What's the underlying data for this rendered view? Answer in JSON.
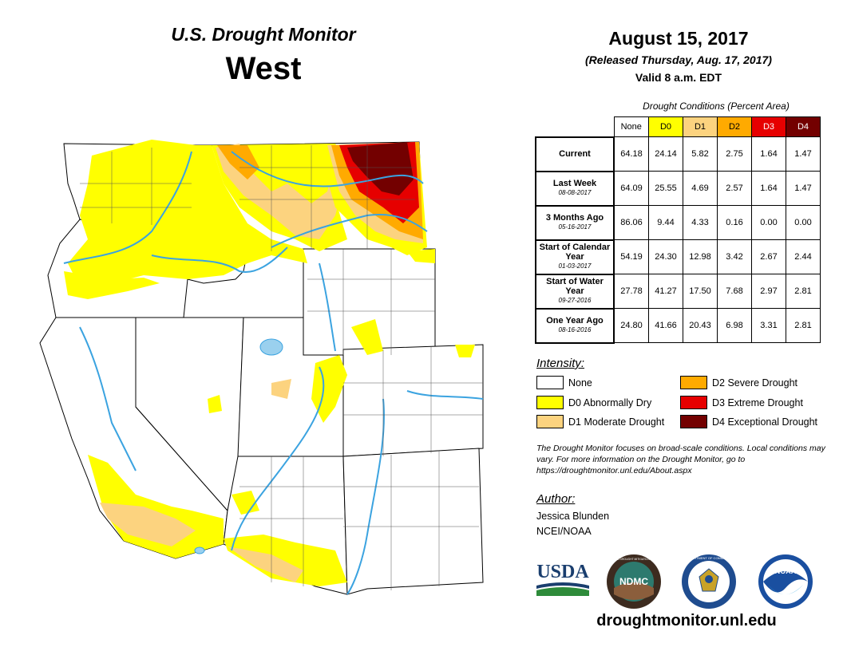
{
  "header": {
    "subtitle": "U.S. Drought Monitor",
    "region": "West",
    "date": "August 15, 2017",
    "released": "(Released Thursday, Aug. 17, 2017)",
    "valid": "Valid 8 a.m. EDT"
  },
  "conditions": {
    "caption": "Drought Conditions (Percent Area)",
    "columns": [
      "None",
      "D0",
      "D1",
      "D2",
      "D3",
      "D4"
    ],
    "column_colors": [
      "#ffffff",
      "#ffff00",
      "#fcd37f",
      "#ffaa00",
      "#e60000",
      "#730000"
    ],
    "column_text_colors": [
      "#000000",
      "#000000",
      "#000000",
      "#000000",
      "#ffffff",
      "#ffffff"
    ],
    "rows": [
      {
        "label": "Current",
        "date": "",
        "values": [
          "64.18",
          "24.14",
          "5.82",
          "2.75",
          "1.64",
          "1.47"
        ]
      },
      {
        "label": "Last Week",
        "date": "08-08-2017",
        "values": [
          "64.09",
          "25.55",
          "4.69",
          "2.57",
          "1.64",
          "1.47"
        ]
      },
      {
        "label": "3 Months Ago",
        "date": "05-16-2017",
        "values": [
          "86.06",
          "9.44",
          "4.33",
          "0.16",
          "0.00",
          "0.00"
        ]
      },
      {
        "label": "Start of Calendar Year",
        "date": "01-03-2017",
        "values": [
          "54.19",
          "24.30",
          "12.98",
          "3.42",
          "2.67",
          "2.44"
        ]
      },
      {
        "label": "Start of Water Year",
        "date": "09-27-2016",
        "values": [
          "27.78",
          "41.27",
          "17.50",
          "7.68",
          "2.97",
          "2.81"
        ]
      },
      {
        "label": "One Year Ago",
        "date": "08-16-2016",
        "values": [
          "24.80",
          "41.66",
          "20.43",
          "6.98",
          "3.31",
          "2.81"
        ]
      }
    ]
  },
  "intensity": {
    "title": "Intensity:",
    "items": [
      {
        "label": "None",
        "color": "#ffffff"
      },
      {
        "label": "D0 Abnormally Dry",
        "color": "#ffff00"
      },
      {
        "label": "D1 Moderate Drought",
        "color": "#fcd37f"
      },
      {
        "label": "D2 Severe Drought",
        "color": "#ffaa00"
      },
      {
        "label": "D3 Extreme Drought",
        "color": "#e60000"
      },
      {
        "label": "D4 Exceptional Drought",
        "color": "#730000"
      }
    ]
  },
  "note": "The Drought Monitor focuses on broad-scale conditions. Local conditions may vary. For more information on the Drought Monitor, go to https://droughtmonitor.unl.edu/About.aspx",
  "author": {
    "title": "Author:",
    "name": "Jessica Blunden",
    "org": "NCEI/NOAA"
  },
  "logos": {
    "usda": "USDA",
    "ndmc": "NDMC",
    "ndmc_ring": "NATIONAL DROUGHT MITIGATION CENTER",
    "commerce_ring": "DEPARTMENT OF COMMERCE",
    "noaa": "NOAA"
  },
  "website": "droughtmonitor.unl.edu",
  "map": {
    "colors": {
      "none": "#ffffff",
      "d0": "#ffff00",
      "d1": "#fcd37f",
      "d2": "#ffaa00",
      "d3": "#e60000",
      "d4": "#730000",
      "water": "#3ba3e0",
      "lake": "#9ad0ee"
    }
  }
}
